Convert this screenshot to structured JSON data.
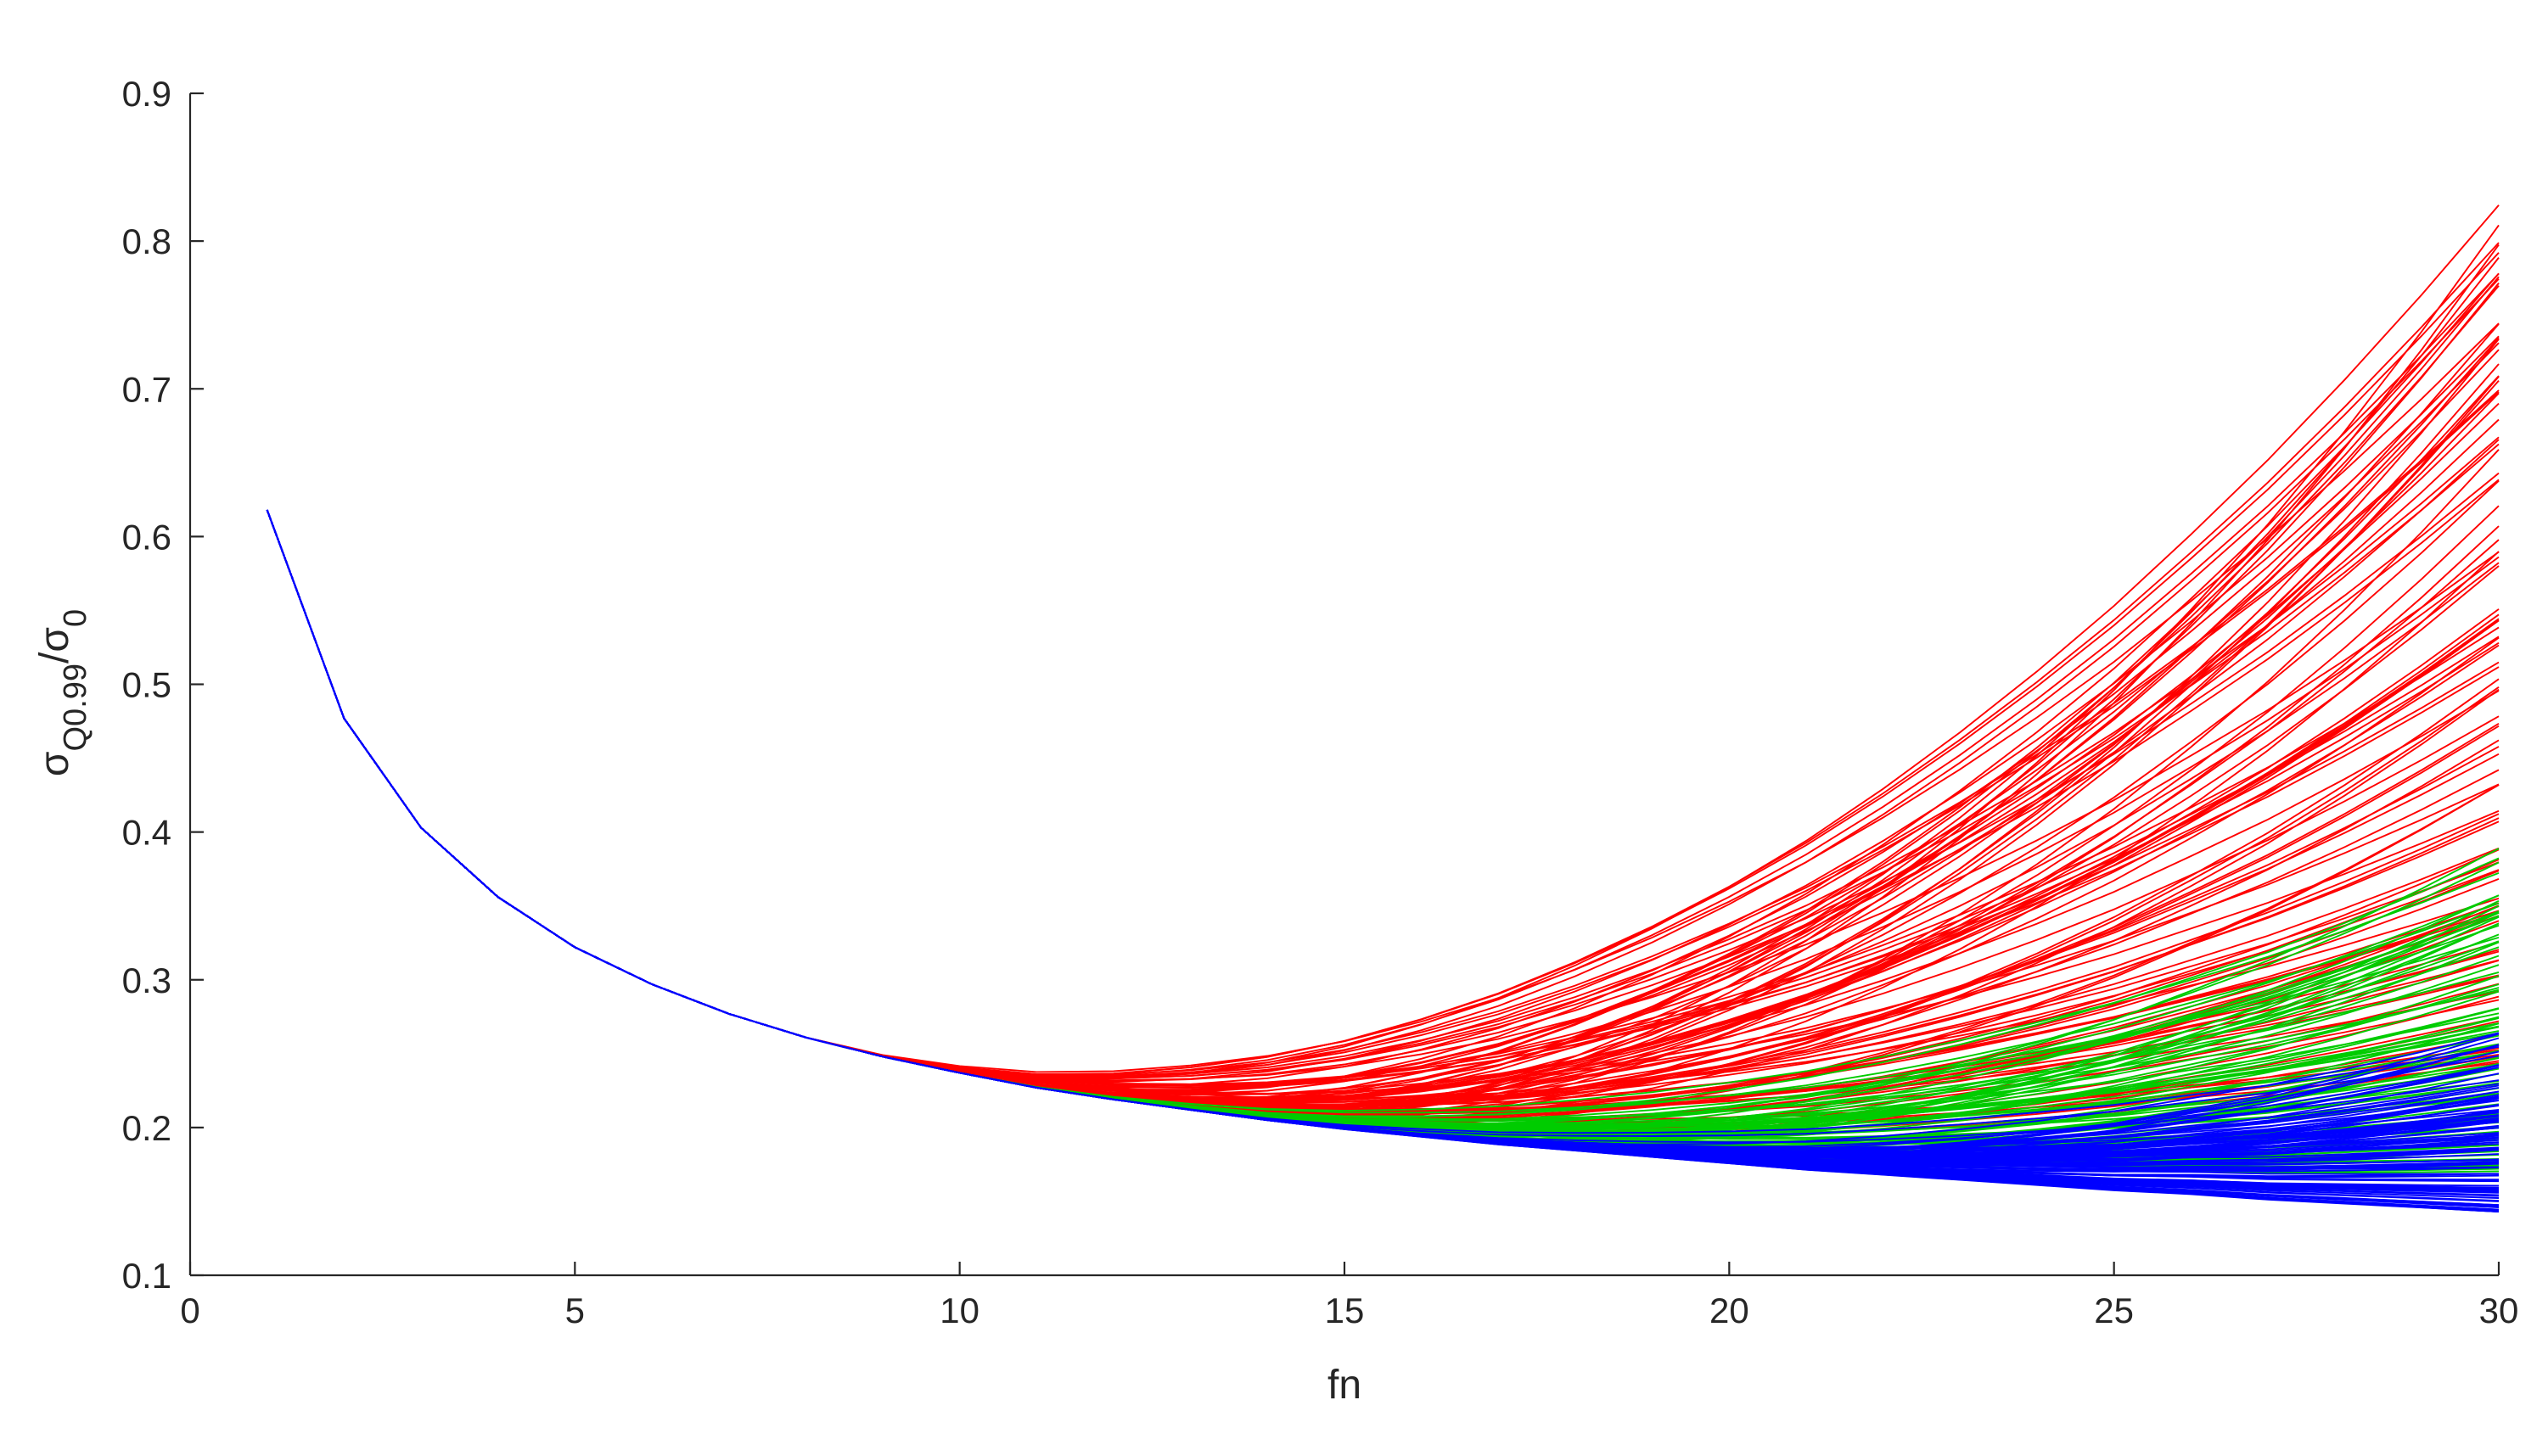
{
  "chart_data": {
    "type": "line",
    "xlabel": "fn",
    "ylabel": {
      "main": "σ",
      "sub": "Q0.99",
      "sep": "/σ",
      "sub2": "0"
    },
    "xlim": [
      0,
      30
    ],
    "ylim": [
      0.1,
      0.9
    ],
    "x_ticks": [
      0,
      5,
      10,
      15,
      20,
      25,
      30
    ],
    "x_tick_labels": [
      "0",
      "5",
      "10",
      "15",
      "20",
      "25",
      "30"
    ],
    "y_ticks": [
      0.1,
      0.2,
      0.3,
      0.4,
      0.5,
      0.6,
      0.7,
      0.8,
      0.9
    ],
    "y_tick_labels": [
      "0.1",
      "0.2",
      "0.3",
      "0.4",
      "0.5",
      "0.6",
      "0.7",
      "0.8",
      "0.9"
    ],
    "grid": false,
    "legend": "none",
    "x": [
      1,
      2,
      3,
      4,
      5,
      6,
      7,
      8,
      9,
      10,
      11,
      12,
      13,
      14,
      15,
      16,
      17,
      18,
      19,
      20,
      21,
      22,
      23,
      24,
      25,
      26,
      27,
      28,
      29,
      30
    ],
    "base_curve": [
      0.618,
      0.477,
      0.403,
      0.356,
      0.322,
      0.297,
      0.277,
      0.261,
      0.248,
      0.237,
      0.227,
      0.219,
      0.212,
      0.205,
      0.199,
      0.194,
      0.189,
      0.185,
      0.181,
      0.177,
      0.173,
      0.17,
      0.167,
      0.164,
      0.161,
      0.159,
      0.156,
      0.154,
      0.152,
      0.15
    ],
    "series": [
      {
        "color": "#ff0000",
        "curve_count": 110,
        "divergence_start_x": [
          8,
          13
        ],
        "end_value_range_at_x30": [
          0.24,
          0.826
        ]
      },
      {
        "color": "#00cc00",
        "curve_count": 90,
        "divergence_start_x": [
          10,
          16
        ],
        "end_value_range_at_x30": [
          0.17,
          0.39
        ]
      },
      {
        "color": "#0000ff",
        "curve_count": 110,
        "divergence_start_x": [
          12,
          18
        ],
        "end_value_range_at_x30": [
          0.143,
          0.265
        ]
      }
    ]
  }
}
